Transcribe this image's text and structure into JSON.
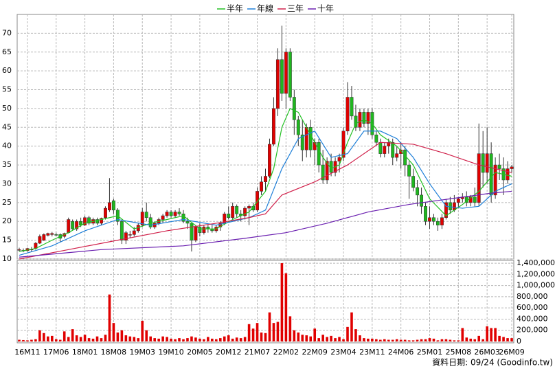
{
  "chart_data": [
    {
      "type": "candlestick",
      "ylim": [
        10,
        75
      ],
      "yticks": [
        10,
        15,
        20,
        25,
        30,
        35,
        40,
        45,
        50,
        55,
        60,
        65,
        70
      ],
      "grid": true,
      "up_color": "#e00000",
      "down_color": "#1fb71f",
      "ohlc": [
        [
          12.5,
          13,
          12,
          12.5
        ],
        [
          12.3,
          12.8,
          11.8,
          12.2
        ],
        [
          12.2,
          13,
          12,
          12.8
        ],
        [
          12.5,
          13.2,
          12,
          12.6
        ],
        [
          12.8,
          14.5,
          12.5,
          14.2
        ],
        [
          14.2,
          16.5,
          14,
          16
        ],
        [
          15,
          16.8,
          14.8,
          16.5
        ],
        [
          16.3,
          17,
          16,
          16.8
        ],
        [
          16.5,
          17.2,
          16,
          16.8
        ],
        [
          16.5,
          17,
          16,
          16.4
        ],
        [
          16.5,
          16.8,
          14.5,
          15.5
        ],
        [
          16,
          17,
          15.5,
          16.8
        ],
        [
          17,
          21,
          16.8,
          20.5
        ],
        [
          20,
          20.5,
          17.8,
          18
        ],
        [
          18,
          20.5,
          17.5,
          20
        ],
        [
          20,
          21,
          18.5,
          19
        ],
        [
          19,
          21.5,
          18.8,
          21
        ],
        [
          21,
          21.5,
          19,
          19.5
        ],
        [
          19.5,
          21,
          19,
          20.5
        ],
        [
          20.5,
          21,
          19,
          19.5
        ],
        [
          19.5,
          21,
          19,
          20.8
        ],
        [
          21,
          24,
          20.5,
          23.5
        ],
        [
          23,
          31.5,
          22.5,
          25
        ],
        [
          25.5,
          26,
          22,
          23
        ],
        [
          23,
          23.5,
          19,
          20
        ],
        [
          20,
          20.5,
          14,
          15
        ],
        [
          15,
          17.5,
          14,
          17
        ],
        [
          16.5,
          17.5,
          15.5,
          16.5
        ],
        [
          16.5,
          18.5,
          16,
          17.5
        ],
        [
          17.5,
          19.5,
          17,
          19
        ],
        [
          19,
          23.5,
          18.5,
          22.5
        ],
        [
          22.5,
          25,
          20,
          21
        ],
        [
          21,
          22,
          18,
          18.5
        ],
        [
          18.5,
          20,
          18,
          19.5
        ],
        [
          19.5,
          21,
          19,
          20.5
        ],
        [
          20.5,
          22,
          19.5,
          21.5
        ],
        [
          21.5,
          23,
          21,
          22.5
        ],
        [
          22.5,
          23,
          21,
          21.5
        ],
        [
          21.5,
          23,
          21,
          22.5
        ],
        [
          22.5,
          23.5,
          21.5,
          22
        ],
        [
          22,
          23,
          19.5,
          20
        ],
        [
          20,
          21,
          18,
          19.5
        ],
        [
          19.5,
          19.5,
          12,
          15
        ],
        [
          15,
          19,
          14.5,
          18.5
        ],
        [
          18.5,
          19.5,
          16,
          17
        ],
        [
          17,
          19,
          16.5,
          18.5
        ],
        [
          18.5,
          19,
          17,
          18
        ],
        [
          18,
          19,
          17,
          17.5
        ],
        [
          17.5,
          19,
          17,
          18.5
        ],
        [
          18.5,
          20,
          17.5,
          19.5
        ],
        [
          19.5,
          22.5,
          19,
          22
        ],
        [
          22,
          24,
          20.5,
          21
        ],
        [
          21,
          25,
          20.5,
          24
        ],
        [
          24,
          24.5,
          21,
          22
        ],
        [
          22,
          23,
          20,
          21.5
        ],
        [
          21.5,
          24,
          20.5,
          23.5
        ],
        [
          23.5,
          24.5,
          19,
          24
        ],
        [
          24,
          25,
          22.5,
          23
        ],
        [
          23,
          29,
          22.5,
          28
        ],
        [
          28,
          32,
          27,
          30.5
        ],
        [
          30.5,
          34,
          28,
          32
        ],
        [
          32,
          42,
          31.5,
          40.5
        ],
        [
          40.5,
          53,
          40,
          50
        ],
        [
          50,
          66,
          48,
          63
        ],
        [
          63,
          72,
          52,
          54
        ],
        [
          54,
          66,
          50,
          65
        ],
        [
          65,
          66,
          52,
          53
        ],
        [
          53,
          55,
          43,
          47
        ],
        [
          47,
          48,
          40,
          43
        ],
        [
          43,
          47,
          36,
          39
        ],
        [
          39,
          46,
          37,
          45
        ],
        [
          45,
          47,
          37,
          39
        ],
        [
          39,
          42,
          35,
          41
        ],
        [
          41,
          42,
          33,
          35
        ],
        [
          35,
          39,
          30,
          31
        ],
        [
          31,
          37,
          30,
          36
        ],
        [
          36,
          38,
          32,
          33
        ],
        [
          33,
          37,
          32,
          36
        ],
        [
          36,
          38,
          33,
          37
        ],
        [
          37,
          45,
          36,
          44
        ],
        [
          44,
          57,
          43,
          53
        ],
        [
          53,
          56,
          47,
          48
        ],
        [
          48,
          51,
          44,
          45
        ],
        [
          45,
          50,
          44,
          49
        ],
        [
          49,
          50,
          45,
          46
        ],
        [
          46,
          50,
          43,
          49
        ],
        [
          49,
          50,
          42,
          43
        ],
        [
          43,
          44,
          40,
          41
        ],
        [
          41,
          42,
          37,
          38
        ],
        [
          38,
          41,
          37,
          40
        ],
        [
          40,
          42,
          38,
          41
        ],
        [
          41,
          42,
          35,
          37
        ],
        [
          37,
          40,
          36,
          38
        ],
        [
          38,
          41,
          34,
          39
        ],
        [
          39,
          40,
          32,
          35
        ],
        [
          35,
          36,
          26,
          32
        ],
        [
          32,
          34,
          28,
          29
        ],
        [
          29,
          31,
          24,
          27
        ],
        [
          27,
          29,
          22,
          24
        ],
        [
          24,
          25,
          19,
          20
        ],
        [
          20,
          24,
          18,
          21
        ],
        [
          21,
          22,
          19,
          20
        ],
        [
          20,
          21,
          17.5,
          19
        ],
        [
          19,
          22,
          18,
          21
        ],
        [
          21,
          26,
          20.5,
          25
        ],
        [
          25,
          26.5,
          22,
          23
        ],
        [
          23,
          27,
          22.5,
          25
        ],
        [
          25,
          26.5,
          23.5,
          26
        ],
        [
          26,
          27.5,
          25,
          26.5
        ],
        [
          26.5,
          28,
          24,
          25
        ],
        [
          25,
          27,
          24,
          26.5
        ],
        [
          26.5,
          29,
          24,
          25
        ],
        [
          25,
          46,
          24,
          38
        ],
        [
          38,
          44,
          29,
          33
        ],
        [
          33,
          45,
          30,
          38
        ],
        [
          38,
          41,
          25,
          27
        ],
        [
          27,
          37,
          26,
          35
        ],
        [
          35,
          38,
          31,
          34
        ],
        [
          34,
          37,
          27,
          31
        ],
        [
          31,
          36,
          30,
          34
        ],
        [
          34,
          35,
          33,
          34.5
        ]
      ],
      "series": [
        {
          "name": "半年",
          "color": "#22c022",
          "x": [
            0,
            4,
            8,
            12,
            16,
            20,
            24,
            28,
            32,
            36,
            40,
            44,
            48,
            52,
            56,
            60,
            62,
            64,
            66,
            68,
            70,
            72,
            74,
            76,
            78,
            80,
            82,
            84,
            86,
            88,
            92,
            96,
            100,
            104,
            108,
            112,
            116,
            120
          ],
          "values": [
            12,
            12.8,
            15,
            17,
            19.5,
            20.5,
            21.5,
            18,
            19.5,
            20.5,
            21.5,
            18,
            18,
            20.5,
            22.5,
            28,
            34,
            45,
            50,
            49,
            45,
            41,
            37,
            34,
            35,
            41,
            46,
            47,
            46,
            43,
            40,
            35,
            26,
            21.5,
            24.5,
            28,
            33,
            32
          ]
        },
        {
          "name": "年線",
          "color": "#1e7fd8",
          "x": [
            0,
            8,
            16,
            24,
            32,
            40,
            48,
            56,
            60,
            64,
            68,
            72,
            76,
            80,
            84,
            88,
            92,
            96,
            100,
            104,
            108,
            112,
            116,
            120
          ],
          "values": [
            11,
            13.5,
            17.5,
            20.5,
            19,
            20.5,
            19,
            21,
            23,
            34,
            42,
            44,
            37,
            38,
            44,
            44,
            42,
            37,
            30,
            24,
            23.5,
            24,
            28,
            30
          ]
        },
        {
          "name": "三年",
          "color": "#d0204a",
          "x": [
            0,
            12,
            24,
            36,
            48,
            56,
            60,
            64,
            72,
            80,
            88,
            96,
            104,
            112,
            120
          ],
          "values": [
            10,
            12.5,
            15,
            17.5,
            19.5,
            21,
            22,
            27,
            30.5,
            35,
            41,
            40.5,
            38,
            35,
            33
          ]
        },
        {
          "name": "十年",
          "color": "#6a1fb0",
          "x": [
            0,
            20,
            40,
            55,
            65,
            75,
            85,
            95,
            105,
            115,
            120
          ],
          "values": [
            10.5,
            12.5,
            13.5,
            15.5,
            17,
            19.5,
            22.5,
            24.5,
            26,
            27.5,
            28
          ]
        }
      ]
    },
    {
      "type": "bar",
      "color": "#e00000",
      "ylim": [
        0,
        1450000
      ],
      "yticks": [
        0,
        {
          "value": 200000,
          "label": "200,000"
        },
        {
          "value": 400000,
          "label": "400,000"
        },
        {
          "value": 600000,
          "label": "600,000"
        },
        {
          "value": 800000,
          "label": "800,000"
        },
        {
          "value": 1000000,
          "label": "1,000,000"
        },
        {
          "value": 1200000,
          "label": "1,200,000"
        },
        {
          "value": 1400000,
          "label": "1,400,000"
        }
      ],
      "categories": [
        null,
        null,
        "16M11",
        null,
        null,
        null,
        null,
        null,
        null,
        "17M06",
        null,
        null,
        null,
        null,
        null,
        null,
        "18M01",
        null,
        null,
        null,
        null,
        null,
        null,
        "18M08",
        null,
        null,
        null,
        null,
        null,
        null,
        "19M03",
        null,
        null,
        null,
        null,
        null,
        null,
        "19M10",
        null,
        null,
        null,
        null,
        null,
        null,
        "20M05",
        null,
        null,
        null,
        null,
        null,
        null,
        "20M12",
        null,
        null,
        null,
        null,
        null,
        null,
        "21M07",
        null,
        null,
        null,
        null,
        null,
        null,
        "22M02",
        null,
        null,
        null,
        null,
        null,
        null,
        "22M09",
        null,
        null,
        null,
        null,
        null,
        null,
        "23M04",
        null,
        null,
        null,
        null,
        null,
        null,
        "23M11",
        null,
        null,
        null,
        null,
        null,
        null,
        "24M06",
        null,
        null,
        null,
        null,
        null,
        null,
        "25M01",
        null,
        null,
        null,
        null,
        null,
        null,
        "25M08",
        null,
        null,
        null,
        null,
        null,
        null,
        "26M03",
        null,
        null,
        null,
        null,
        null,
        "26M09"
      ],
      "values": [
        30000,
        25000,
        20000,
        30000,
        40000,
        200000,
        150000,
        90000,
        100000,
        40000,
        30000,
        180000,
        80000,
        220000,
        110000,
        80000,
        120000,
        60000,
        50000,
        90000,
        60000,
        120000,
        840000,
        330000,
        160000,
        200000,
        110000,
        90000,
        80000,
        60000,
        370000,
        200000,
        90000,
        60000,
        50000,
        90000,
        80000,
        50000,
        40000,
        60000,
        40000,
        60000,
        90000,
        70000,
        50000,
        40000,
        80000,
        50000,
        40000,
        60000,
        90000,
        110000,
        50000,
        70000,
        60000,
        80000,
        310000,
        230000,
        330000,
        160000,
        150000,
        520000,
        330000,
        350000,
        1400000,
        1220000,
        450000,
        200000,
        160000,
        120000,
        110000,
        90000,
        230000,
        60000,
        120000,
        80000,
        100000,
        60000,
        80000,
        40000,
        260000,
        520000,
        220000,
        110000,
        60000,
        50000,
        50000,
        40000,
        30000,
        40000,
        30000,
        30000,
        40000,
        30000,
        30000,
        20000,
        20000,
        30000,
        40000,
        40000,
        60000,
        50000,
        20000,
        40000,
        40000,
        30000,
        20000,
        20000,
        240000,
        70000,
        50000,
        40000,
        100000,
        40000,
        270000,
        240000,
        240000,
        100000,
        80000,
        60000,
        60000
      ]
    }
  ],
  "source": "資料日期: 09/24 (Goodinfo.tw)"
}
